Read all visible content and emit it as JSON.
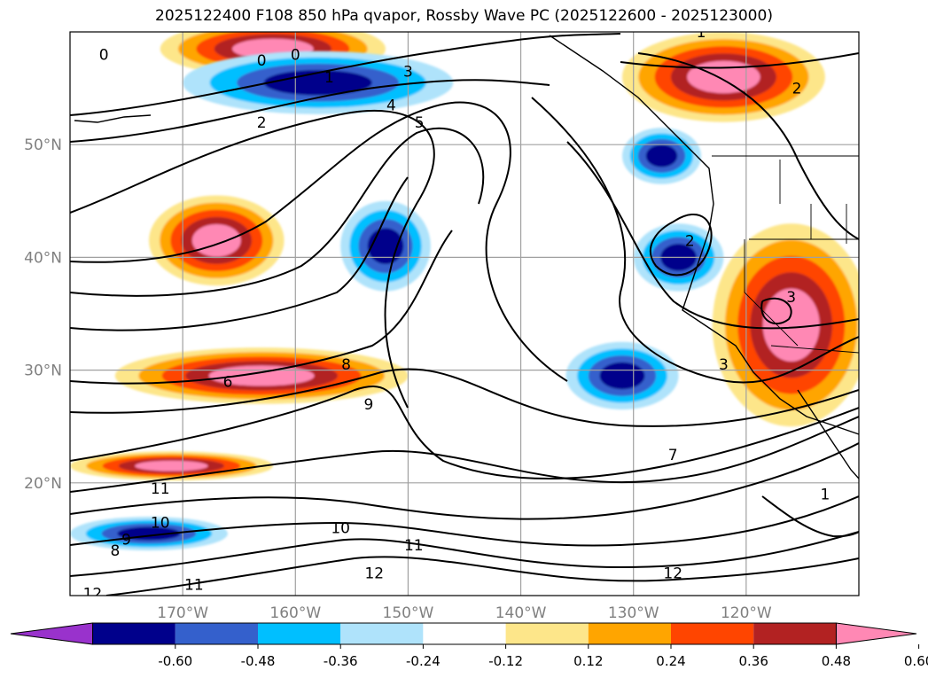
{
  "title": "2025122400 F108 850 hPa qvapor, Rossby Wave PC (2025122600 - 2025123000)",
  "map": {
    "lon_range": [
      -180,
      -110
    ],
    "lat_range": [
      10,
      60
    ],
    "lat_labels": [
      {
        "text": "50°N",
        "lat": 50
      },
      {
        "text": "40°N",
        "lat": 40
      },
      {
        "text": "30°N",
        "lat": 30
      },
      {
        "text": "20°N",
        "lat": 20
      }
    ],
    "lon_labels": [
      {
        "text": "170°W",
        "lon": -170
      },
      {
        "text": "160°W",
        "lon": -160
      },
      {
        "text": "150°W",
        "lon": -150
      },
      {
        "text": "140°W",
        "lon": -140
      },
      {
        "text": "130°W",
        "lon": -130
      },
      {
        "text": "120°W",
        "lon": -120
      }
    ],
    "contour_labels": [
      {
        "text": "0",
        "lon": -177,
        "lat": 58
      },
      {
        "text": "0",
        "lon": -163,
        "lat": 57.5
      },
      {
        "text": "0",
        "lon": -160,
        "lat": 58
      },
      {
        "text": "1",
        "lon": -157,
        "lat": 56
      },
      {
        "text": "2",
        "lon": -163,
        "lat": 52
      },
      {
        "text": "3",
        "lon": -150,
        "lat": 56.5
      },
      {
        "text": "4",
        "lon": -151.5,
        "lat": 53.5
      },
      {
        "text": "5",
        "lon": -149,
        "lat": 52
      },
      {
        "text": "6",
        "lon": -166,
        "lat": 29
      },
      {
        "text": "8",
        "lon": -155.5,
        "lat": 30.5
      },
      {
        "text": "9",
        "lon": -153.5,
        "lat": 27
      },
      {
        "text": "11",
        "lon": -172,
        "lat": 19.5
      },
      {
        "text": "10",
        "lon": -172,
        "lat": 16.5
      },
      {
        "text": "9",
        "lon": -175,
        "lat": 15
      },
      {
        "text": "8",
        "lon": -176,
        "lat": 14
      },
      {
        "text": "10",
        "lon": -156,
        "lat": 16
      },
      {
        "text": "11",
        "lon": -149.5,
        "lat": 14.5
      },
      {
        "text": "12",
        "lon": -153,
        "lat": 12
      },
      {
        "text": "11",
        "lon": -169,
        "lat": 11
      },
      {
        "text": "12",
        "lon": -178,
        "lat": 10.2
      },
      {
        "text": "7",
        "lon": -126.5,
        "lat": 22.5
      },
      {
        "text": "12",
        "lon": -126.5,
        "lat": 12
      },
      {
        "text": "3",
        "lon": -122,
        "lat": 30.5
      },
      {
        "text": "2",
        "lon": -125,
        "lat": 41.5
      },
      {
        "text": "3",
        "lon": -116,
        "lat": 36.5
      },
      {
        "text": "2",
        "lon": -115.5,
        "lat": 55
      },
      {
        "text": "1",
        "lon": -124,
        "lat": 60
      },
      {
        "text": "1",
        "lon": -113,
        "lat": 19
      }
    ],
    "fill_features": [
      {
        "name": "dipole-north-positive",
        "kind": "positive",
        "lon": -162,
        "lat": 58.5,
        "rx": 10,
        "ry": 2.5
      },
      {
        "name": "dipole-north-negative",
        "kind": "negative",
        "lon": -158,
        "lat": 55.5,
        "rx": 12,
        "ry": 2.8
      },
      {
        "name": "midpacific-positive",
        "kind": "positive",
        "lon": -167,
        "lat": 41.5,
        "rx": 6,
        "ry": 4
      },
      {
        "name": "subtropical-positive-band",
        "kind": "positive",
        "lon": -163,
        "lat": 29.5,
        "rx": 13,
        "ry": 2.5
      },
      {
        "name": "tropical-positive-band",
        "kind": "positive",
        "lon": -171,
        "lat": 21.5,
        "rx": 9,
        "ry": 1.3
      },
      {
        "name": "tropical-negative-band",
        "kind": "negative",
        "lon": -173,
        "lat": 15.5,
        "rx": 7,
        "ry": 1.5
      },
      {
        "name": "central-negative",
        "kind": "negative",
        "lon": -152,
        "lat": 41,
        "rx": 4,
        "ry": 4
      },
      {
        "name": "east-negative-a",
        "kind": "negative",
        "lon": -127.5,
        "lat": 49,
        "rx": 3.5,
        "ry": 2.5
      },
      {
        "name": "east-negative-b",
        "kind": "negative",
        "lon": -126,
        "lat": 40,
        "rx": 4,
        "ry": 3
      },
      {
        "name": "east-negative-c",
        "kind": "negative",
        "lon": -131,
        "lat": 29.5,
        "rx": 5,
        "ry": 3
      },
      {
        "name": "coastal-positive-north",
        "kind": "positive",
        "lon": -122,
        "lat": 56,
        "rx": 9,
        "ry": 4
      },
      {
        "name": "coastal-positive-south",
        "kind": "positive",
        "lon": -116,
        "lat": 34,
        "rx": 7,
        "ry": 9
      }
    ]
  },
  "colorbar": {
    "ticks": [
      "-0.60",
      "-0.48",
      "-0.36",
      "-0.24",
      "-0.12",
      "0.12",
      "0.24",
      "0.36",
      "0.48",
      "0.60"
    ],
    "colors": [
      "#9932cc",
      "#00008b",
      "#3460cc",
      "#00bfff",
      "#afe3fb",
      "#ffffff",
      "#fde68a",
      "#ffa500",
      "#ff4500",
      "#b22222",
      "#ff88b4"
    ]
  }
}
